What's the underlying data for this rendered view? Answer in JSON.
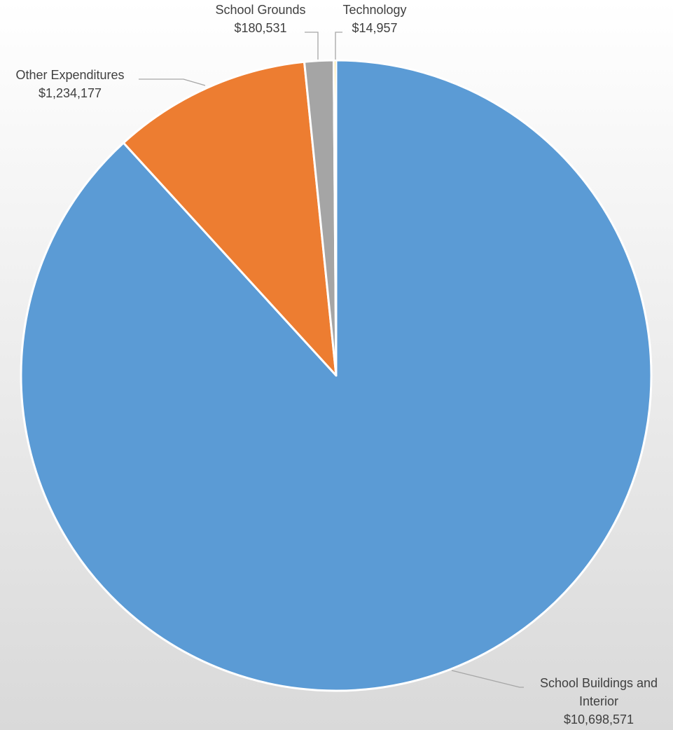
{
  "chart_data": {
    "type": "pie",
    "title": "",
    "start_angle_deg": 0,
    "direction": "clockwise",
    "slices": [
      {
        "name": "School Buildings and Interior",
        "name_lines": [
          "School Buildings and",
          "Interior"
        ],
        "value": 10698571,
        "value_label": "$10,698,571",
        "color": "#5b9bd5"
      },
      {
        "name": "Other Expenditures",
        "name_lines": [
          "Other Expenditures"
        ],
        "value": 1234177,
        "value_label": "$1,234,177",
        "color": "#ed7d31"
      },
      {
        "name": "School Grounds",
        "name_lines": [
          "School Grounds"
        ],
        "value": 180531,
        "value_label": "$180,531",
        "color": "#a5a5a5"
      },
      {
        "name": "Technology",
        "name_lines": [
          "Technology"
        ],
        "value": 14957,
        "value_label": "$14,957",
        "color": "#ffc000"
      }
    ],
    "legend": "none",
    "slice_border_color": "#ffffff"
  }
}
